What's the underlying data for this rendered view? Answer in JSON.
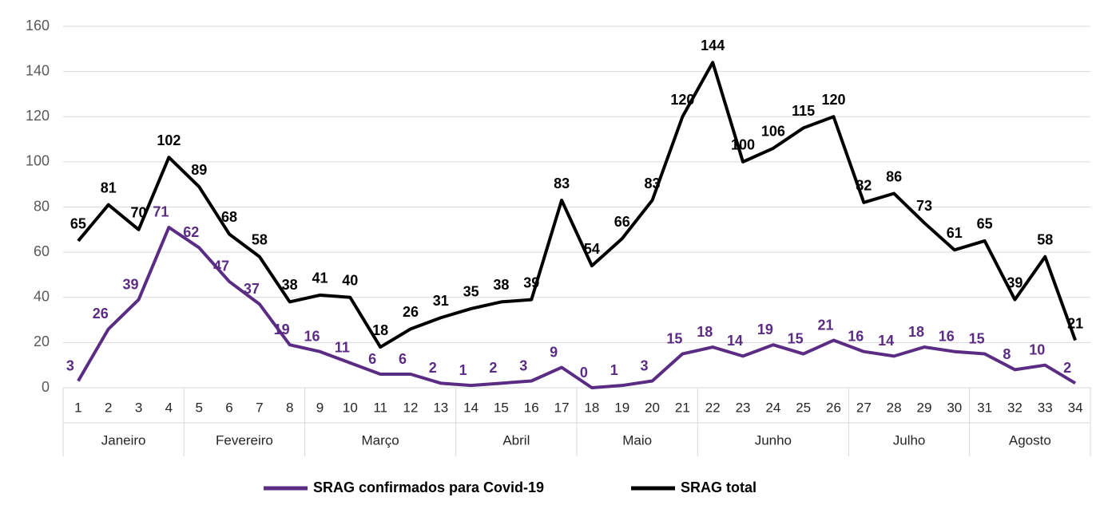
{
  "chart_data": {
    "type": "line",
    "categories": [
      "1",
      "2",
      "3",
      "4",
      "5",
      "6",
      "7",
      "8",
      "9",
      "10",
      "11",
      "12",
      "13",
      "14",
      "15",
      "16",
      "17",
      "18",
      "19",
      "20",
      "21",
      "22",
      "23",
      "24",
      "25",
      "26",
      "27",
      "28",
      "29",
      "30",
      "31",
      "32",
      "33",
      "34"
    ],
    "category_groups": [
      "Janeiro",
      "Janeiro",
      "Janeiro",
      "Janeiro",
      "Fevereiro",
      "Fevereiro",
      "Fevereiro",
      "Fevereiro",
      "Março",
      "Março",
      "Março",
      "Março",
      "Março",
      "Abril",
      "Abril",
      "Abril",
      "Abril",
      "Maio",
      "Maio",
      "Maio",
      "Maio",
      "Junho",
      "Junho",
      "Junho",
      "Junho",
      "Junho",
      "Julho",
      "Julho",
      "Julho",
      "Julho",
      "Agosto",
      "Agosto",
      "Agosto",
      "Agosto"
    ],
    "series": [
      {
        "name": "SRAG confirmados para Covid-19",
        "color": "#5b2c83",
        "values": [
          3,
          26,
          39,
          71,
          62,
          47,
          37,
          19,
          16,
          11,
          6,
          6,
          2,
          1,
          2,
          3,
          9,
          0,
          1,
          3,
          15,
          18,
          14,
          19,
          15,
          21,
          16,
          14,
          18,
          16,
          15,
          8,
          10,
          2
        ]
      },
      {
        "name": "SRAG total",
        "color": "#000000",
        "values": [
          65,
          81,
          70,
          102,
          89,
          68,
          58,
          38,
          41,
          40,
          18,
          26,
          31,
          35,
          38,
          39,
          83,
          54,
          66,
          83,
          120,
          144,
          100,
          106,
          115,
          120,
          82,
          86,
          73,
          61,
          65,
          39,
          58,
          21
        ]
      }
    ],
    "ylim": [
      0,
      160
    ],
    "yticks": [
      0,
      20,
      40,
      60,
      80,
      100,
      120,
      140,
      160
    ],
    "grid": true,
    "legend": "bottom"
  }
}
